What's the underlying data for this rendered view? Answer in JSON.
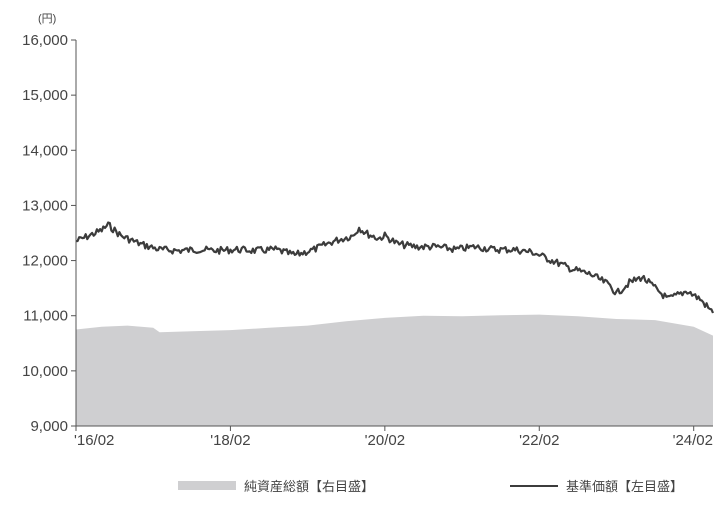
{
  "chart_data": {
    "type": "line",
    "unit_label": "(円)",
    "y_axis": {
      "min": 9000,
      "max": 16000,
      "ticks": [
        9000,
        10000,
        11000,
        12000,
        13000,
        14000,
        15000,
        16000
      ],
      "tick_labels": [
        "9,000",
        "10,000",
        "11,000",
        "12,000",
        "13,000",
        "14,000",
        "15,000",
        "16,000"
      ]
    },
    "x_axis": {
      "start": "2016-02",
      "end": "2024-05",
      "ticks": [
        "2016-02",
        "2018-02",
        "2020-02",
        "2022-02",
        "2024-02"
      ],
      "tick_labels": [
        "'16/02",
        "'18/02",
        "'20/02",
        "'22/02",
        "'24/02"
      ]
    },
    "grid": false,
    "legend_position": "bottom",
    "series": [
      {
        "name": "純資産総額【右目盛】",
        "kind": "area",
        "color": "#cfcfd1",
        "points": [
          [
            "2016-02",
            10750
          ],
          [
            "2016-06",
            10800
          ],
          [
            "2016-10",
            10820
          ],
          [
            "2017-02",
            10780
          ],
          [
            "2017-03",
            10700
          ],
          [
            "2017-08",
            10720
          ],
          [
            "2018-02",
            10740
          ],
          [
            "2018-08",
            10780
          ],
          [
            "2019-02",
            10820
          ],
          [
            "2019-08",
            10900
          ],
          [
            "2020-02",
            10960
          ],
          [
            "2020-08",
            11000
          ],
          [
            "2021-02",
            10990
          ],
          [
            "2021-08",
            11010
          ],
          [
            "2022-02",
            11020
          ],
          [
            "2022-08",
            10990
          ],
          [
            "2023-02",
            10940
          ],
          [
            "2023-08",
            10920
          ],
          [
            "2024-02",
            10800
          ],
          [
            "2024-05",
            10640
          ]
        ]
      },
      {
        "name": "基準価額【左目盛】",
        "kind": "line",
        "color": "#3c3c3c",
        "points": [
          [
            "2016-02",
            12350
          ],
          [
            "2016-04",
            12450
          ],
          [
            "2016-06",
            12550
          ],
          [
            "2016-07",
            12650
          ],
          [
            "2016-09",
            12450
          ],
          [
            "2016-12",
            12300
          ],
          [
            "2017-03",
            12200
          ],
          [
            "2017-06",
            12180
          ],
          [
            "2017-09",
            12200
          ],
          [
            "2017-12",
            12180
          ],
          [
            "2018-03",
            12200
          ],
          [
            "2018-06",
            12180
          ],
          [
            "2018-09",
            12200
          ],
          [
            "2018-12",
            12100
          ],
          [
            "2019-03",
            12200
          ],
          [
            "2019-06",
            12350
          ],
          [
            "2019-09",
            12450
          ],
          [
            "2019-10",
            12600
          ],
          [
            "2019-11",
            12500
          ],
          [
            "2020-01",
            12400
          ],
          [
            "2020-02",
            12450
          ],
          [
            "2020-04",
            12300
          ],
          [
            "2020-07",
            12250
          ],
          [
            "2020-10",
            12250
          ],
          [
            "2021-01",
            12200
          ],
          [
            "2021-04",
            12250
          ],
          [
            "2021-07",
            12200
          ],
          [
            "2021-10",
            12200
          ],
          [
            "2022-01",
            12150
          ],
          [
            "2022-04",
            12000
          ],
          [
            "2022-07",
            11850
          ],
          [
            "2022-10",
            11750
          ],
          [
            "2023-01",
            11550
          ],
          [
            "2023-02",
            11400
          ],
          [
            "2023-04",
            11600
          ],
          [
            "2023-06",
            11700
          ],
          [
            "2023-08",
            11500
          ],
          [
            "2023-10",
            11300
          ],
          [
            "2024-01",
            11450
          ],
          [
            "2024-03",
            11300
          ],
          [
            "2024-05",
            11050
          ]
        ]
      }
    ]
  }
}
